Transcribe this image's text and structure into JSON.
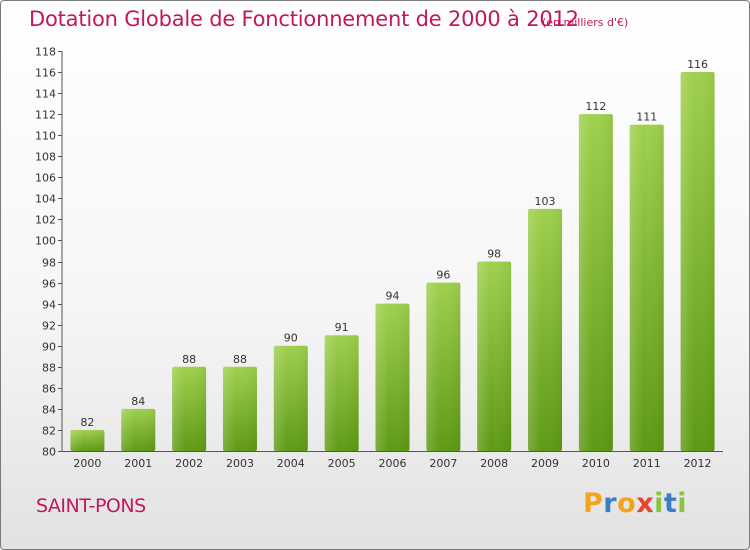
{
  "chart_data": {
    "type": "bar",
    "title": "Dotation Globale de Fonctionnement de 2000 à 2012",
    "subtitle": "(en milliers d'€)",
    "categories": [
      "2000",
      "2001",
      "2002",
      "2003",
      "2004",
      "2005",
      "2006",
      "2007",
      "2008",
      "2009",
      "2010",
      "2011",
      "2012"
    ],
    "values": [
      82,
      84,
      88,
      88,
      90,
      91,
      94,
      96,
      98,
      103,
      112,
      111,
      116
    ],
    "value_labels": [
      "82",
      "84",
      "88",
      "88",
      "90",
      "91",
      "94",
      "96",
      "98",
      "103",
      "112",
      "111",
      "116"
    ],
    "ylim": [
      80,
      118
    ],
    "yticks": [
      "80",
      "82",
      "84",
      "86",
      "88",
      "90",
      "92",
      "94",
      "96",
      "98",
      "100",
      "102",
      "104",
      "106",
      "108",
      "110",
      "112",
      "114",
      "116",
      "118"
    ],
    "xlabel": "",
    "ylabel": "",
    "grid": false
  },
  "commune": "SAINT-PONS",
  "logo": {
    "letters": [
      "P",
      "r",
      "o",
      "x",
      "i",
      "t",
      "i"
    ],
    "colors": [
      "#f5a21b",
      "#3a7fc4",
      "#f5a21b",
      "#e8432c",
      "#8ac43f",
      "#3a7fc4",
      "#8ac43f"
    ]
  },
  "colors": {
    "title": "#c2185b",
    "bar_top": "#9fd04d",
    "bar_bottom": "#5e9a15",
    "axis": "#555555"
  }
}
